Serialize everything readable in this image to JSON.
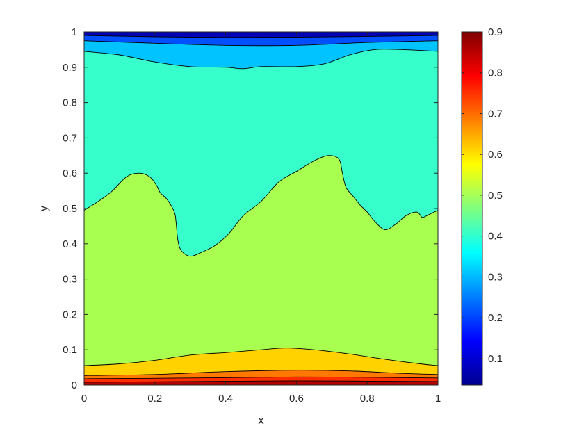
{
  "chart_data": {
    "type": "contourf",
    "xlabel": "x",
    "ylabel": "y",
    "xlim": [
      0,
      1
    ],
    "ylim": [
      0,
      1
    ],
    "x_ticks": [
      "0",
      "0.2",
      "0.4",
      "0.6",
      "0.8",
      "1"
    ],
    "y_ticks": [
      "0",
      "0.1",
      "0.2",
      "0.3",
      "0.4",
      "0.5",
      "0.6",
      "0.7",
      "0.8",
      "0.9",
      "1"
    ],
    "colorbar": {
      "range": [
        0.035,
        0.9
      ],
      "ticks": [
        "0.1",
        "0.2",
        "0.3",
        "0.4",
        "0.5",
        "0.6",
        "0.7",
        "0.8",
        "0.9"
      ],
      "colormap": "jet"
    },
    "grid": false,
    "background_level": {
      "value": 0.4,
      "color": "#36ffcb"
    },
    "contour_levels": [
      {
        "value": 0.5,
        "color": "#a8ff50",
        "boundary": [
          [
            0.0,
            0.495
          ],
          [
            0.04,
            0.52
          ],
          [
            0.08,
            0.55
          ],
          [
            0.12,
            0.59
          ],
          [
            0.155,
            0.6
          ],
          [
            0.185,
            0.59
          ],
          [
            0.205,
            0.565
          ],
          [
            0.215,
            0.545
          ],
          [
            0.235,
            0.525
          ],
          [
            0.255,
            0.49
          ],
          [
            0.26,
            0.46
          ],
          [
            0.265,
            0.41
          ],
          [
            0.275,
            0.38
          ],
          [
            0.3,
            0.365
          ],
          [
            0.33,
            0.375
          ],
          [
            0.37,
            0.395
          ],
          [
            0.41,
            0.43
          ],
          [
            0.45,
            0.48
          ],
          [
            0.5,
            0.52
          ],
          [
            0.55,
            0.575
          ],
          [
            0.6,
            0.605
          ],
          [
            0.65,
            0.635
          ],
          [
            0.69,
            0.65
          ],
          [
            0.72,
            0.64
          ],
          [
            0.73,
            0.6
          ],
          [
            0.74,
            0.56
          ],
          [
            0.76,
            0.535
          ],
          [
            0.78,
            0.51
          ],
          [
            0.8,
            0.49
          ],
          [
            0.82,
            0.465
          ],
          [
            0.85,
            0.44
          ],
          [
            0.88,
            0.455
          ],
          [
            0.91,
            0.48
          ],
          [
            0.94,
            0.49
          ],
          [
            0.955,
            0.475
          ],
          [
            0.965,
            0.478
          ],
          [
            0.985,
            0.488
          ],
          [
            1.0,
            0.495
          ]
        ]
      },
      {
        "value": 0.6,
        "color": "#ffd200",
        "boundary": [
          [
            0.0,
            0.055
          ],
          [
            0.1,
            0.06
          ],
          [
            0.2,
            0.07
          ],
          [
            0.3,
            0.085
          ],
          [
            0.4,
            0.092
          ],
          [
            0.5,
            0.1
          ],
          [
            0.57,
            0.105
          ],
          [
            0.65,
            0.1
          ],
          [
            0.75,
            0.088
          ],
          [
            0.85,
            0.073
          ],
          [
            0.95,
            0.06
          ],
          [
            1.0,
            0.055
          ]
        ]
      },
      {
        "value": 0.7,
        "color": "#ff7800",
        "boundary": [
          [
            0.0,
            0.027
          ],
          [
            0.2,
            0.03
          ],
          [
            0.4,
            0.038
          ],
          [
            0.6,
            0.042
          ],
          [
            0.75,
            0.04
          ],
          [
            0.9,
            0.033
          ],
          [
            1.0,
            0.03
          ]
        ]
      },
      {
        "value": 0.8,
        "color": "#ff2d00",
        "boundary": [
          [
            0.0,
            0.018
          ],
          [
            0.3,
            0.02
          ],
          [
            0.6,
            0.023
          ],
          [
            0.8,
            0.022
          ],
          [
            1.0,
            0.02
          ]
        ]
      },
      {
        "value": 0.9,
        "color": "#b40000",
        "boundary": [
          [
            0.0,
            0.008
          ],
          [
            0.3,
            0.01
          ],
          [
            0.6,
            0.012
          ],
          [
            0.8,
            0.011
          ],
          [
            1.0,
            0.01
          ]
        ]
      }
    ],
    "top_levels": [
      {
        "value": 0.3,
        "color": "#00c3ff",
        "boundary": [
          [
            0.0,
            0.945
          ],
          [
            0.1,
            0.935
          ],
          [
            0.2,
            0.915
          ],
          [
            0.3,
            0.902
          ],
          [
            0.4,
            0.9
          ],
          [
            0.45,
            0.896
          ],
          [
            0.5,
            0.902
          ],
          [
            0.6,
            0.902
          ],
          [
            0.68,
            0.91
          ],
          [
            0.75,
            0.935
          ],
          [
            0.82,
            0.95
          ],
          [
            0.9,
            0.95
          ],
          [
            1.0,
            0.945
          ]
        ]
      },
      {
        "value": 0.2,
        "color": "#0050ff",
        "boundary": [
          [
            0.0,
            0.975
          ],
          [
            0.2,
            0.968
          ],
          [
            0.4,
            0.962
          ],
          [
            0.6,
            0.962
          ],
          [
            0.8,
            0.97
          ],
          [
            1.0,
            0.975
          ]
        ]
      },
      {
        "value": 0.1,
        "color": "#0000b4",
        "boundary": [
          [
            0.0,
            0.99
          ],
          [
            0.3,
            0.985
          ],
          [
            0.6,
            0.985
          ],
          [
            1.0,
            0.99
          ]
        ]
      }
    ]
  }
}
